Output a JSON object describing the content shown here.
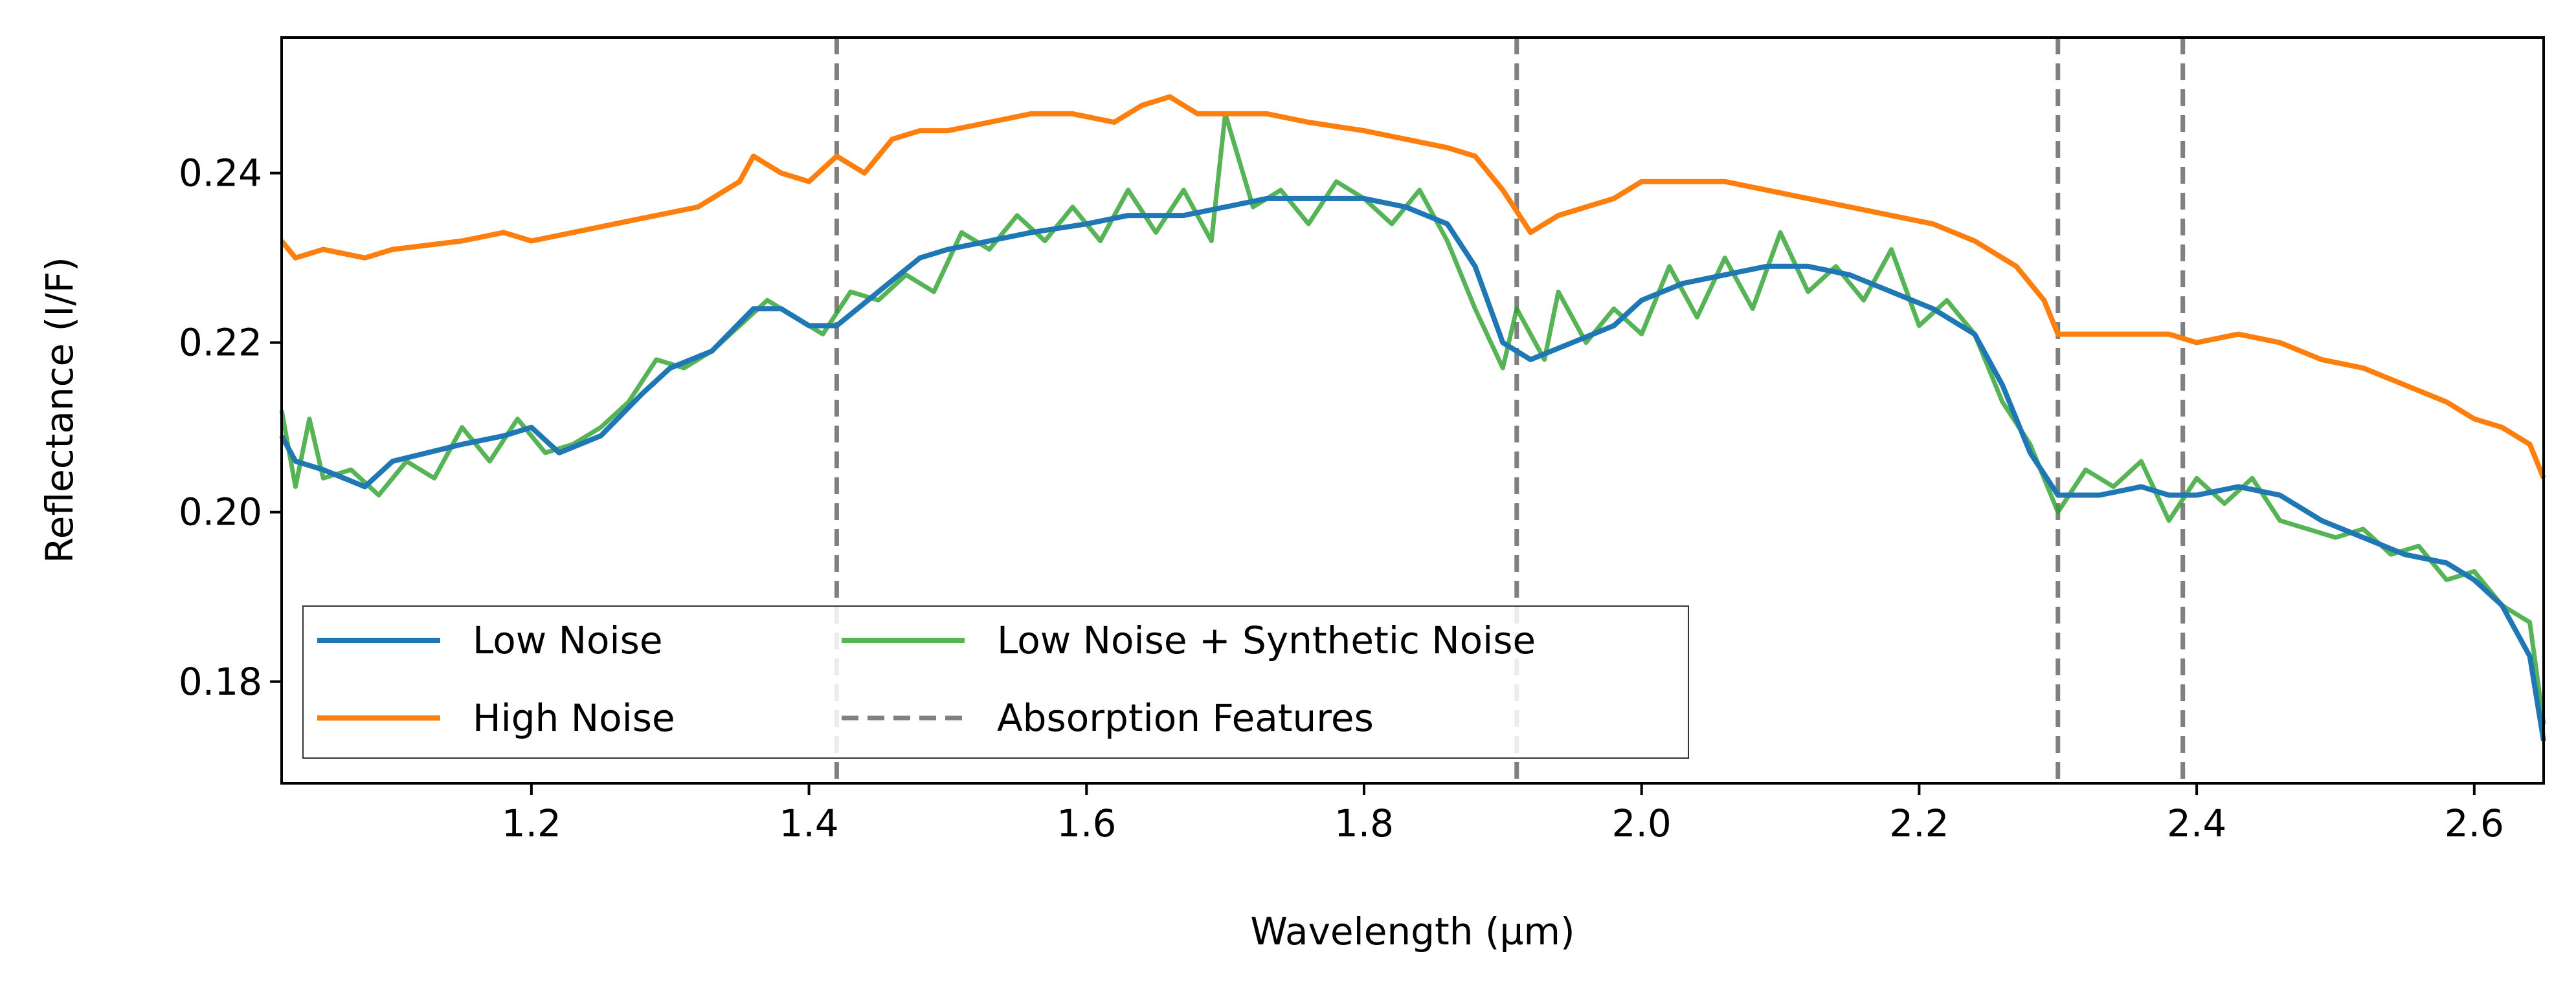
{
  "chart_data": {
    "type": "line",
    "title": "",
    "xlabel": "Wavelength (µm)",
    "ylabel": "Reflectance (I/F)",
    "xlim": [
      1.02,
      2.65
    ],
    "ylim": [
      0.168,
      0.256
    ],
    "xticks": [
      1.2,
      1.4,
      1.6,
      1.8,
      2.0,
      2.2,
      2.4,
      2.6
    ],
    "xtick_labels": [
      "1.2",
      "1.4",
      "1.6",
      "1.8",
      "2.0",
      "2.2",
      "2.4",
      "2.6"
    ],
    "yticks": [
      0.18,
      0.2,
      0.22,
      0.24
    ],
    "ytick_labels": [
      "0.18",
      "0.20",
      "0.22",
      "0.24"
    ],
    "grid": false,
    "legend": {
      "location": "lower-left",
      "columns": 2,
      "entries": [
        "Low Noise",
        "High Noise",
        "Low Noise + Synthetic Noise",
        "Absorption Features"
      ]
    },
    "absorption_features": [
      1.42,
      1.91,
      2.3,
      2.39
    ],
    "series": [
      {
        "name": "Low Noise",
        "color": "#1f77b4",
        "x": [
          1.02,
          1.03,
          1.05,
          1.08,
          1.1,
          1.15,
          1.18,
          1.2,
          1.22,
          1.25,
          1.28,
          1.3,
          1.33,
          1.36,
          1.38,
          1.4,
          1.42,
          1.45,
          1.48,
          1.5,
          1.53,
          1.56,
          1.6,
          1.63,
          1.65,
          1.67,
          1.7,
          1.73,
          1.76,
          1.8,
          1.83,
          1.86,
          1.88,
          1.9,
          1.92,
          1.95,
          1.98,
          2.0,
          2.03,
          2.06,
          2.09,
          2.12,
          2.15,
          2.18,
          2.21,
          2.24,
          2.26,
          2.28,
          2.3,
          2.33,
          2.36,
          2.38,
          2.4,
          2.43,
          2.46,
          2.49,
          2.52,
          2.55,
          2.58,
          2.6,
          2.62,
          2.64,
          2.65
        ],
        "values": [
          0.209,
          0.206,
          0.205,
          0.203,
          0.206,
          0.208,
          0.209,
          0.21,
          0.207,
          0.209,
          0.214,
          0.217,
          0.219,
          0.224,
          0.224,
          0.222,
          0.222,
          0.226,
          0.23,
          0.231,
          0.232,
          0.233,
          0.234,
          0.235,
          0.235,
          0.235,
          0.236,
          0.237,
          0.237,
          0.237,
          0.236,
          0.234,
          0.229,
          0.22,
          0.218,
          0.22,
          0.222,
          0.225,
          0.227,
          0.228,
          0.229,
          0.229,
          0.228,
          0.226,
          0.224,
          0.221,
          0.215,
          0.207,
          0.202,
          0.202,
          0.203,
          0.202,
          0.202,
          0.203,
          0.202,
          0.199,
          0.197,
          0.195,
          0.194,
          0.192,
          0.189,
          0.183,
          0.173
        ]
      },
      {
        "name": "High Noise",
        "color": "#ff7f0e",
        "x": [
          1.02,
          1.03,
          1.05,
          1.08,
          1.1,
          1.15,
          1.18,
          1.2,
          1.23,
          1.26,
          1.29,
          1.32,
          1.35,
          1.36,
          1.38,
          1.4,
          1.42,
          1.44,
          1.46,
          1.48,
          1.5,
          1.53,
          1.56,
          1.59,
          1.62,
          1.64,
          1.66,
          1.68,
          1.7,
          1.73,
          1.76,
          1.8,
          1.83,
          1.86,
          1.88,
          1.9,
          1.92,
          1.94,
          1.96,
          1.98,
          2.0,
          2.03,
          2.06,
          2.09,
          2.12,
          2.15,
          2.18,
          2.21,
          2.24,
          2.27,
          2.29,
          2.3,
          2.33,
          2.36,
          2.38,
          2.4,
          2.43,
          2.46,
          2.49,
          2.52,
          2.55,
          2.58,
          2.6,
          2.62,
          2.64,
          2.65
        ],
        "values": [
          0.232,
          0.23,
          0.231,
          0.23,
          0.231,
          0.232,
          0.233,
          0.232,
          0.233,
          0.234,
          0.235,
          0.236,
          0.239,
          0.242,
          0.24,
          0.239,
          0.242,
          0.24,
          0.244,
          0.245,
          0.245,
          0.246,
          0.247,
          0.247,
          0.246,
          0.248,
          0.249,
          0.247,
          0.247,
          0.247,
          0.246,
          0.245,
          0.244,
          0.243,
          0.242,
          0.238,
          0.233,
          0.235,
          0.236,
          0.237,
          0.239,
          0.239,
          0.239,
          0.238,
          0.237,
          0.236,
          0.235,
          0.234,
          0.232,
          0.229,
          0.225,
          0.221,
          0.221,
          0.221,
          0.221,
          0.22,
          0.221,
          0.22,
          0.218,
          0.217,
          0.215,
          0.213,
          0.211,
          0.21,
          0.208,
          0.204
        ]
      },
      {
        "name": "Low Noise + Synthetic Noise",
        "color": "#2ca02c",
        "x": [
          1.02,
          1.03,
          1.04,
          1.05,
          1.07,
          1.09,
          1.11,
          1.13,
          1.15,
          1.17,
          1.19,
          1.21,
          1.23,
          1.25,
          1.27,
          1.29,
          1.31,
          1.33,
          1.35,
          1.37,
          1.39,
          1.41,
          1.43,
          1.45,
          1.47,
          1.49,
          1.51,
          1.53,
          1.55,
          1.57,
          1.59,
          1.61,
          1.63,
          1.65,
          1.67,
          1.69,
          1.7,
          1.72,
          1.74,
          1.76,
          1.78,
          1.8,
          1.82,
          1.84,
          1.86,
          1.88,
          1.9,
          1.91,
          1.93,
          1.94,
          1.96,
          1.98,
          2.0,
          2.02,
          2.04,
          2.06,
          2.08,
          2.1,
          2.12,
          2.14,
          2.16,
          2.18,
          2.2,
          2.22,
          2.24,
          2.26,
          2.28,
          2.3,
          2.32,
          2.34,
          2.36,
          2.38,
          2.4,
          2.42,
          2.44,
          2.46,
          2.48,
          2.5,
          2.52,
          2.54,
          2.56,
          2.58,
          2.6,
          2.62,
          2.64,
          2.65
        ],
        "values": [
          0.212,
          0.203,
          0.211,
          0.204,
          0.205,
          0.202,
          0.206,
          0.204,
          0.21,
          0.206,
          0.211,
          0.207,
          0.208,
          0.21,
          0.213,
          0.218,
          0.217,
          0.219,
          0.222,
          0.225,
          0.223,
          0.221,
          0.226,
          0.225,
          0.228,
          0.226,
          0.233,
          0.231,
          0.235,
          0.232,
          0.236,
          0.232,
          0.238,
          0.233,
          0.238,
          0.232,
          0.247,
          0.236,
          0.238,
          0.234,
          0.239,
          0.237,
          0.234,
          0.238,
          0.232,
          0.224,
          0.217,
          0.224,
          0.218,
          0.226,
          0.22,
          0.224,
          0.221,
          0.229,
          0.223,
          0.23,
          0.224,
          0.233,
          0.226,
          0.229,
          0.225,
          0.231,
          0.222,
          0.225,
          0.221,
          0.213,
          0.208,
          0.2,
          0.205,
          0.203,
          0.206,
          0.199,
          0.204,
          0.201,
          0.204,
          0.199,
          0.198,
          0.197,
          0.198,
          0.195,
          0.196,
          0.192,
          0.193,
          0.189,
          0.187,
          0.175
        ]
      }
    ]
  }
}
